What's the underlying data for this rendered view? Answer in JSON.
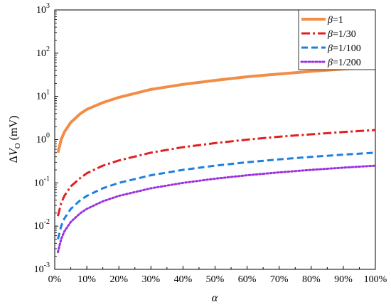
{
  "chart_data": {
    "type": "line",
    "xlabel": "α",
    "ylabel": "ΔV_O (mV)",
    "ylabel_parts": {
      "delta": "Δ",
      "v": "V",
      "sub": "O",
      "unit": " (mV)"
    },
    "xlim": [
      0,
      100
    ],
    "ylim": [
      0.001,
      1000
    ],
    "yscale": "log",
    "x_ticks": [
      "0%",
      "10%",
      "20%",
      "30%",
      "40%",
      "50%",
      "60%",
      "70%",
      "80%",
      "90%",
      "100%"
    ],
    "y_ticks": [
      {
        "base": "10",
        "exp": "-3"
      },
      {
        "base": "10",
        "exp": "-2"
      },
      {
        "base": "10",
        "exp": "-1"
      },
      {
        "base": "10",
        "exp": "0"
      },
      {
        "base": "10",
        "exp": "1"
      },
      {
        "base": "10",
        "exp": "2"
      },
      {
        "base": "10",
        "exp": "3"
      }
    ],
    "legend_position": "top-right",
    "series": [
      {
        "name": "β=1",
        "greek": "β",
        "label": "=1",
        "color": "#f28c46",
        "dash": "solid",
        "x": [
          1,
          2,
          3,
          5,
          8,
          10,
          15,
          20,
          30,
          40,
          50,
          60,
          70,
          80,
          90,
          100
        ],
        "y": [
          0.5,
          1.0,
          1.5,
          2.5,
          4.0,
          5.0,
          7.2,
          9.5,
          14.5,
          19,
          23.5,
          28.5,
          33,
          38,
          43,
          47
        ]
      },
      {
        "name": "β=1/30",
        "greek": "β",
        "label": "=1/30",
        "color": "#e02020",
        "dash": "dashdot",
        "x": [
          1,
          2,
          3,
          5,
          8,
          10,
          15,
          20,
          30,
          40,
          50,
          60,
          70,
          80,
          90,
          100
        ],
        "y": [
          0.017,
          0.034,
          0.05,
          0.083,
          0.13,
          0.167,
          0.25,
          0.33,
          0.5,
          0.67,
          0.83,
          1.0,
          1.17,
          1.33,
          1.5,
          1.67
        ]
      },
      {
        "name": "β=1/100",
        "greek": "β",
        "label": "=1/100",
        "color": "#1f7fe0",
        "dash": "dashed",
        "x": [
          1,
          2,
          3,
          5,
          8,
          10,
          15,
          20,
          30,
          40,
          50,
          60,
          70,
          80,
          90,
          100
        ],
        "y": [
          0.005,
          0.01,
          0.015,
          0.025,
          0.04,
          0.05,
          0.075,
          0.1,
          0.15,
          0.2,
          0.25,
          0.3,
          0.35,
          0.4,
          0.45,
          0.5
        ]
      },
      {
        "name": "β=1/200",
        "greek": "β",
        "label": "=1/200",
        "color": "#9b30e0",
        "dash": "dotted",
        "x": [
          1,
          2,
          3,
          5,
          8,
          10,
          15,
          20,
          30,
          40,
          50,
          60,
          70,
          80,
          90,
          100
        ],
        "y": [
          0.0025,
          0.005,
          0.0075,
          0.0125,
          0.02,
          0.025,
          0.0375,
          0.05,
          0.075,
          0.1,
          0.125,
          0.15,
          0.175,
          0.2,
          0.225,
          0.25
        ]
      }
    ]
  }
}
